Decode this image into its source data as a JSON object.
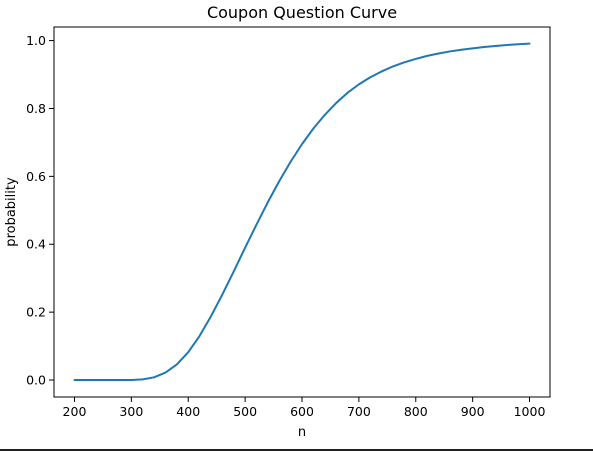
{
  "chart_data": {
    "type": "line",
    "title": "Coupon Question Curve",
    "xlabel": "n",
    "ylabel": "probability",
    "xlim": [
      164,
      1036
    ],
    "ylim": [
      -0.05,
      1.04
    ],
    "xticks": [
      200,
      300,
      400,
      500,
      600,
      700,
      800,
      900,
      1000
    ],
    "yticks": [
      0.0,
      0.2,
      0.4,
      0.6,
      0.8,
      1.0
    ],
    "ytick_labels": [
      "0.0",
      "0.2",
      "0.4",
      "0.6",
      "0.8",
      "1.0"
    ],
    "grid": false,
    "series": [
      {
        "color": "#1f77b4",
        "x": [
          200,
          250,
          300,
          320,
          340,
          360,
          380,
          400,
          420,
          440,
          460,
          480,
          500,
          520,
          540,
          560,
          580,
          600,
          620,
          640,
          660,
          680,
          700,
          720,
          740,
          760,
          780,
          800,
          820,
          840,
          860,
          880,
          900,
          920,
          940,
          960,
          980,
          1000
        ],
        "y": [
          0.0,
          0.0,
          0.0,
          0.002,
          0.008,
          0.022,
          0.046,
          0.082,
          0.13,
          0.188,
          0.252,
          0.32,
          0.39,
          0.458,
          0.524,
          0.586,
          0.643,
          0.695,
          0.741,
          0.781,
          0.816,
          0.846,
          0.871,
          0.892,
          0.909,
          0.924,
          0.936,
          0.946,
          0.955,
          0.962,
          0.968,
          0.973,
          0.977,
          0.981,
          0.984,
          0.987,
          0.989,
          0.991
        ]
      }
    ]
  }
}
